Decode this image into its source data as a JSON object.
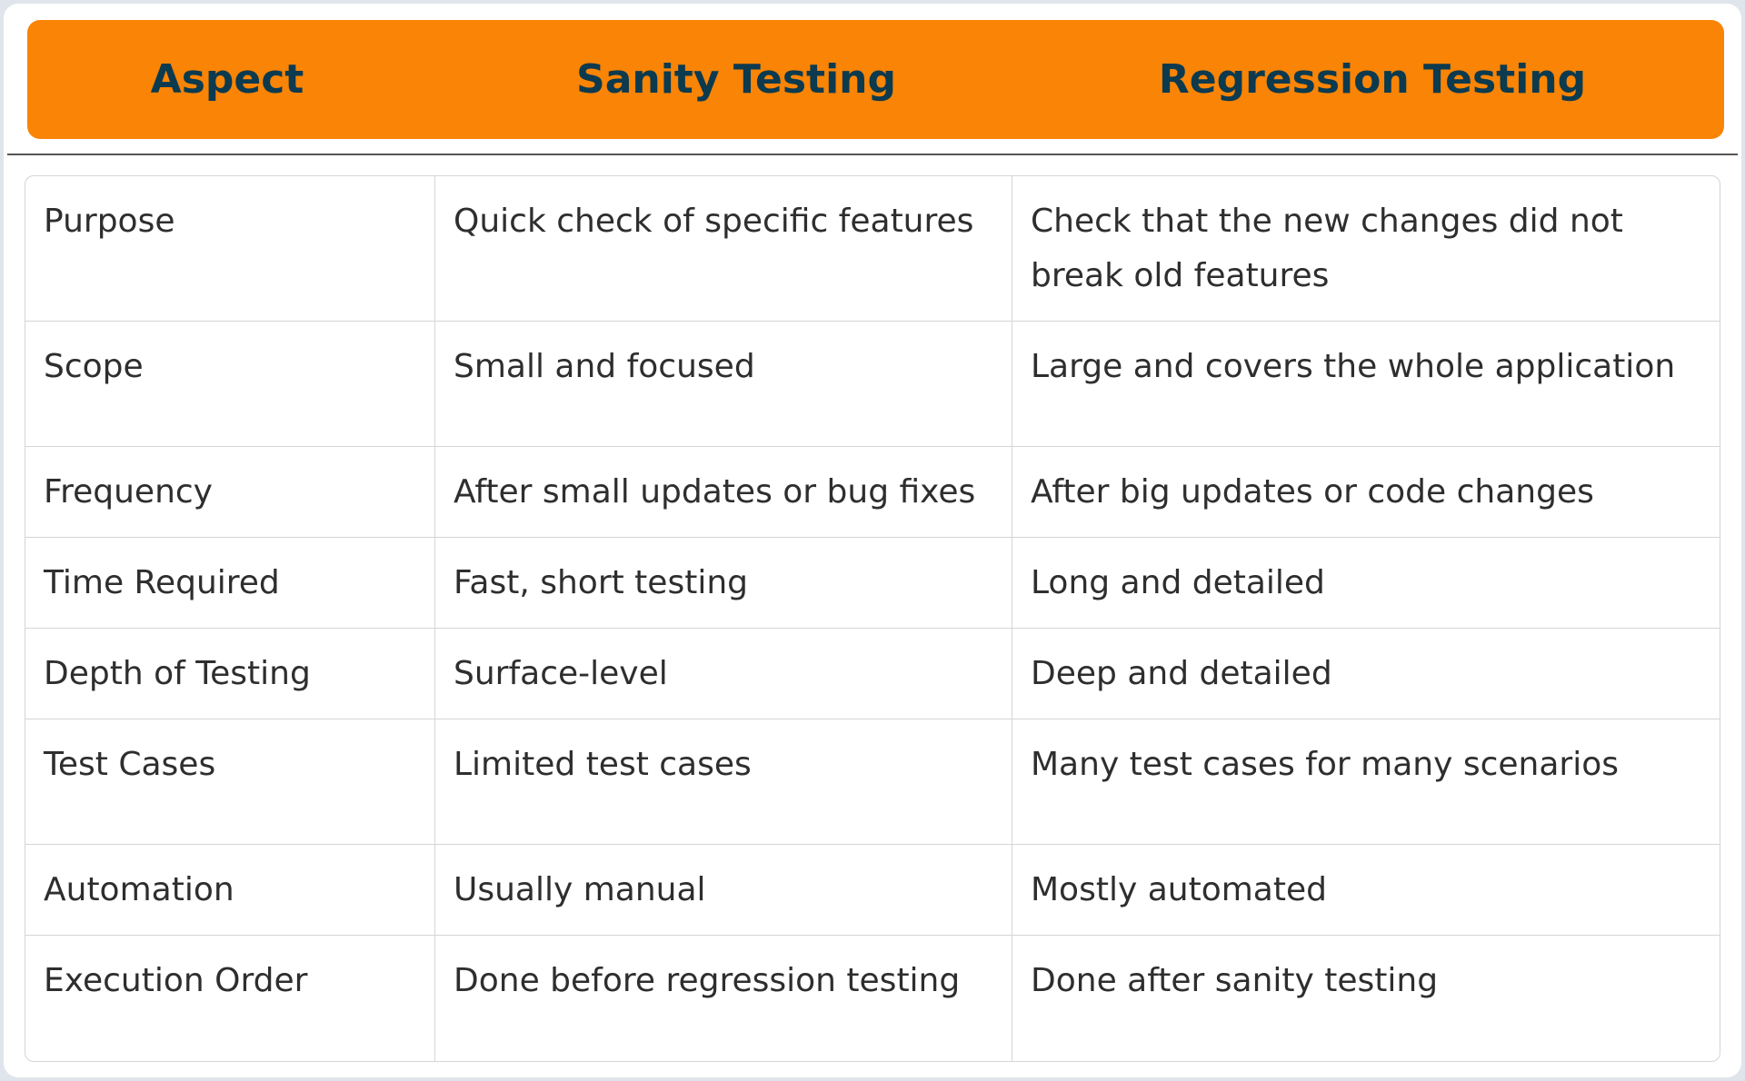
{
  "headers": [
    "Aspect",
    "Sanity Testing",
    "Regression Testing"
  ],
  "rows": [
    [
      "Purpose",
      "Quick check of specific features",
      "Check that the new changes did not break old features"
    ],
    [
      "Scope",
      "Small and focused",
      "Large and covers the whole application"
    ],
    [
      "Frequency",
      "After small updates or bug fixes",
      "After big updates or code changes"
    ],
    [
      "Time Required",
      "Fast, short testing",
      "Long and detailed"
    ],
    [
      "Depth of Testing",
      "Surface-level",
      "Deep and detailed"
    ],
    [
      "Test Cases",
      "Limited test cases",
      "Many test cases for many scenarios"
    ],
    [
      "Automation",
      "Usually manual",
      "Mostly automated"
    ],
    [
      "Execution Order",
      "Done before regression testing",
      "Done after sanity testing"
    ]
  ],
  "colors": {
    "header_bg": "#f98405",
    "header_text": "#0c3a4f",
    "body_text": "#2e2e2e"
  }
}
